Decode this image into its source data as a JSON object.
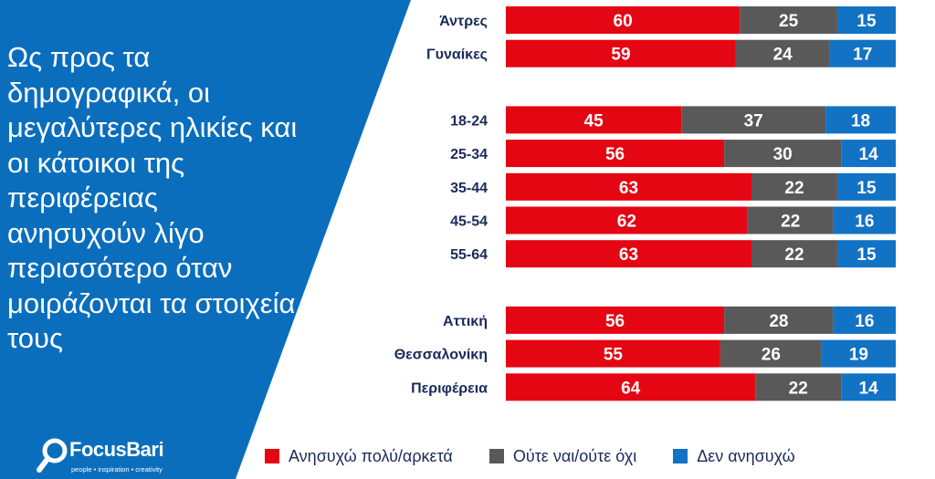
{
  "headline": "Ως προς τα δημογραφικά, οι μεγαλύτερες ηλικίες και οι κάτοικοι της περιφέρειας ανησυχούν λίγο περισσότερο όταν μοιράζονται τα στοιχεία τους",
  "logo": {
    "brand": "FocusBari",
    "tagline": "people • inspiration • creativity"
  },
  "colors": {
    "panel": "#0a6ebd",
    "worried": "#e50613",
    "neutral": "#595959",
    "not_worried": "#1272c4",
    "label_text": "#1a2a5a"
  },
  "chart_data": {
    "type": "bar",
    "orientation": "horizontal",
    "stacked": true,
    "normalized": true,
    "categories": [
      "Άντρες",
      "Γυναίκες",
      "18-24",
      "25-34",
      "35-44",
      "45-54",
      "55-64",
      "Αττική",
      "Θεσσαλονίκη",
      "Περιφέρεια"
    ],
    "groups": [
      [
        "Άντρες",
        "Γυναίκες"
      ],
      [
        "18-24",
        "25-34",
        "35-44",
        "45-54",
        "55-64"
      ],
      [
        "Αττική",
        "Θεσσαλονίκη",
        "Περιφέρεια"
      ]
    ],
    "series": [
      {
        "name": "Ανησυχώ πολύ/αρκετά",
        "color": "#e50613",
        "values": [
          60,
          59,
          45,
          56,
          63,
          62,
          63,
          56,
          55,
          64
        ]
      },
      {
        "name": "Ούτε ναι/ούτε όχι",
        "color": "#595959",
        "values": [
          25,
          24,
          37,
          30,
          22,
          22,
          22,
          28,
          26,
          22
        ]
      },
      {
        "name": "Δεν ανησυχώ",
        "color": "#1272c4",
        "values": [
          15,
          17,
          18,
          14,
          15,
          16,
          15,
          16,
          19,
          14
        ]
      }
    ],
    "legend": "bottom",
    "grid": false
  }
}
